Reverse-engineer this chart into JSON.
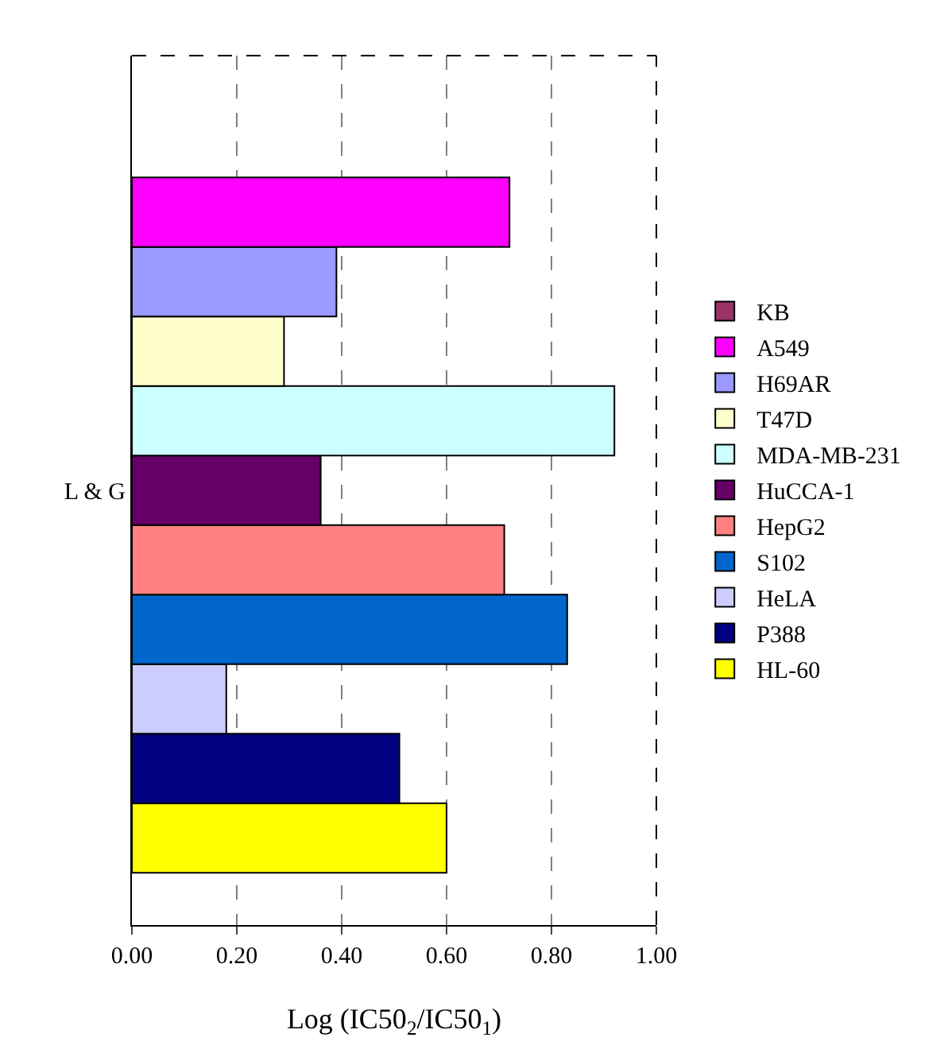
{
  "chart_data": {
    "type": "bar",
    "orientation": "horizontal",
    "categories": [
      "L & G"
    ],
    "series": [
      {
        "name": "KB",
        "color": "#993366",
        "values": [
          null
        ]
      },
      {
        "name": "A549",
        "color": "#ff00ff",
        "values": [
          0.72
        ]
      },
      {
        "name": "H69AR",
        "color": "#9999ff",
        "values": [
          0.39
        ]
      },
      {
        "name": "T47D",
        "color": "#ffffcc",
        "values": [
          0.29
        ]
      },
      {
        "name": "MDA-MB-231",
        "color": "#ccffff",
        "values": [
          0.92
        ]
      },
      {
        "name": "HuCCA-1",
        "color": "#660066",
        "values": [
          0.36
        ]
      },
      {
        "name": "HepG2",
        "color": "#ff8080",
        "values": [
          0.71
        ]
      },
      {
        "name": "S102",
        "color": "#0066cc",
        "values": [
          0.83
        ]
      },
      {
        "name": "HeLA",
        "color": "#ccccff",
        "values": [
          0.18
        ]
      },
      {
        "name": "P388",
        "color": "#000080",
        "values": [
          0.51
        ]
      },
      {
        "name": "HL-60",
        "color": "#ffff00",
        "values": [
          0.6
        ]
      }
    ],
    "xlabel": "Log (IC50$_{2}$/IC50$_{1}$)",
    "xlim": [
      0,
      1
    ],
    "xticks": [
      {
        "value": 0,
        "label": "0.00"
      },
      {
        "value": 0.2,
        "label": "0.20"
      },
      {
        "value": 0.4,
        "label": "0.40"
      },
      {
        "value": 0.6,
        "label": "0.60"
      },
      {
        "value": 0.8,
        "label": "0.80"
      },
      {
        "value": 1,
        "label": "1.00"
      }
    ],
    "grid": "x",
    "legend": "right"
  }
}
